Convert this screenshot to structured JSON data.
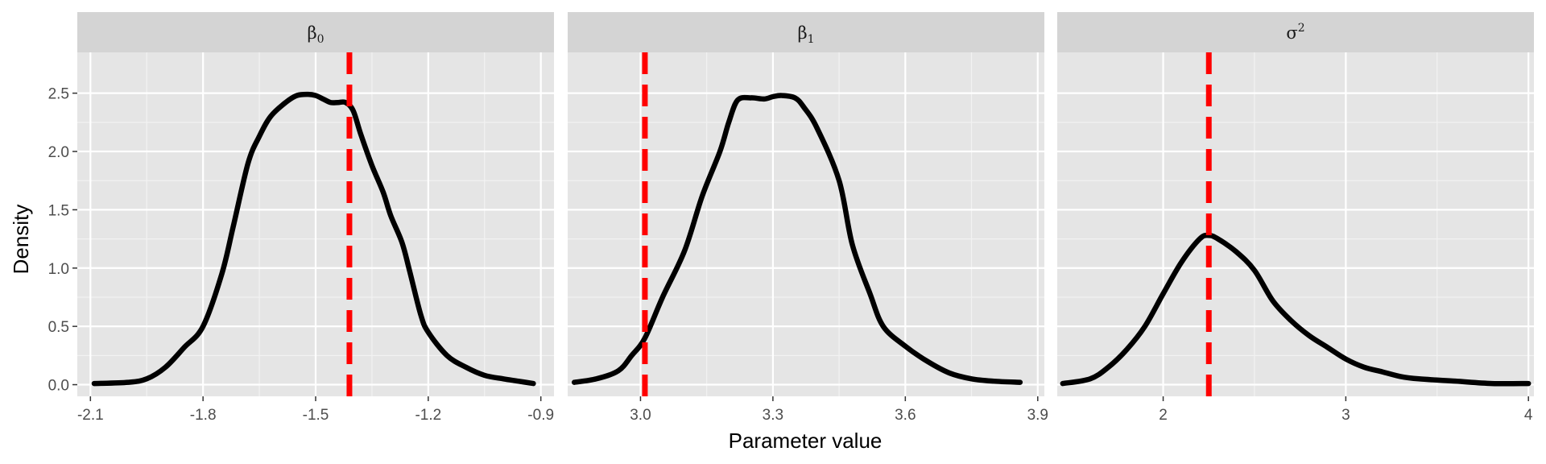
{
  "chart_data": {
    "type": "line",
    "xlabel": "Parameter value",
    "ylabel": "Density",
    "ylim": [
      -0.1,
      2.85
    ],
    "y_ticks": [
      0.0,
      0.5,
      1.0,
      1.5,
      2.0,
      2.5
    ],
    "y_tick_labels": [
      "0.0",
      "0.5",
      "1.0",
      "1.5",
      "2.0",
      "2.5"
    ],
    "grid": true,
    "density_color": "#000000",
    "reference_color": "#ff0000",
    "panel_background": "#e5e5e5",
    "strip_background": "#d4d4d4",
    "panels": [
      {
        "strip": {
          "symbol": "β",
          "script": "0",
          "script_type": "sub"
        },
        "xlim": [
          -2.135,
          -0.865
        ],
        "x_ticks": [
          -2.1,
          -1.8,
          -1.5,
          -1.2,
          -0.9
        ],
        "x_tick_labels": [
          "-2.1",
          "-1.8",
          "-1.5",
          "-1.2",
          "-0.9"
        ],
        "reference_line": -1.41,
        "density": {
          "x": [
            -2.09,
            -2.0,
            -1.95,
            -1.9,
            -1.85,
            -1.8,
            -1.75,
            -1.72,
            -1.68,
            -1.65,
            -1.62,
            -1.58,
            -1.55,
            -1.52,
            -1.5,
            -1.48,
            -1.46,
            -1.44,
            -1.42,
            -1.4,
            -1.38,
            -1.35,
            -1.32,
            -1.3,
            -1.27,
            -1.25,
            -1.22,
            -1.2,
            -1.15,
            -1.1,
            -1.05,
            -1.0,
            -0.96,
            -0.92
          ],
          "y": [
            0.01,
            0.02,
            0.05,
            0.15,
            0.32,
            0.5,
            0.95,
            1.35,
            1.9,
            2.13,
            2.3,
            2.42,
            2.48,
            2.49,
            2.48,
            2.45,
            2.42,
            2.42,
            2.42,
            2.35,
            2.15,
            1.88,
            1.65,
            1.45,
            1.22,
            0.98,
            0.6,
            0.45,
            0.25,
            0.15,
            0.08,
            0.05,
            0.03,
            0.01
          ]
        }
      },
      {
        "strip": {
          "symbol": "β",
          "script": "1",
          "script_type": "sub"
        },
        "xlim": [
          2.835,
          3.915
        ],
        "x_ticks": [
          3.0,
          3.3,
          3.6,
          3.9
        ],
        "x_tick_labels": [
          "3.0",
          "3.3",
          "3.6",
          "3.9"
        ],
        "reference_line": 3.01,
        "density": {
          "x": [
            2.85,
            2.9,
            2.95,
            2.98,
            3.01,
            3.05,
            3.1,
            3.14,
            3.18,
            3.2,
            3.22,
            3.25,
            3.28,
            3.3,
            3.32,
            3.35,
            3.37,
            3.4,
            3.45,
            3.48,
            3.52,
            3.55,
            3.6,
            3.65,
            3.7,
            3.75,
            3.8,
            3.86
          ],
          "y": [
            0.02,
            0.05,
            0.12,
            0.25,
            0.4,
            0.75,
            1.15,
            1.62,
            2.0,
            2.25,
            2.44,
            2.46,
            2.45,
            2.47,
            2.48,
            2.46,
            2.38,
            2.2,
            1.75,
            1.2,
            0.78,
            0.5,
            0.33,
            0.2,
            0.1,
            0.05,
            0.03,
            0.02
          ]
        }
      },
      {
        "strip": {
          "symbol": "σ",
          "script": "2",
          "script_type": "sup"
        },
        "xlim": [
          1.42,
          4.03
        ],
        "x_ticks": [
          2,
          3,
          4
        ],
        "x_tick_labels": [
          "2",
          "3",
          "4"
        ],
        "reference_line": 2.25,
        "density": {
          "x": [
            1.45,
            1.6,
            1.7,
            1.8,
            1.9,
            2.0,
            2.1,
            2.2,
            2.25,
            2.3,
            2.4,
            2.5,
            2.6,
            2.7,
            2.8,
            2.9,
            3.0,
            3.1,
            3.2,
            3.3,
            3.4,
            3.6,
            3.8,
            4.0
          ],
          "y": [
            0.01,
            0.05,
            0.15,
            0.3,
            0.5,
            0.78,
            1.05,
            1.25,
            1.28,
            1.25,
            1.14,
            0.98,
            0.72,
            0.55,
            0.42,
            0.32,
            0.22,
            0.15,
            0.11,
            0.07,
            0.05,
            0.03,
            0.01,
            0.01
          ]
        }
      }
    ]
  }
}
